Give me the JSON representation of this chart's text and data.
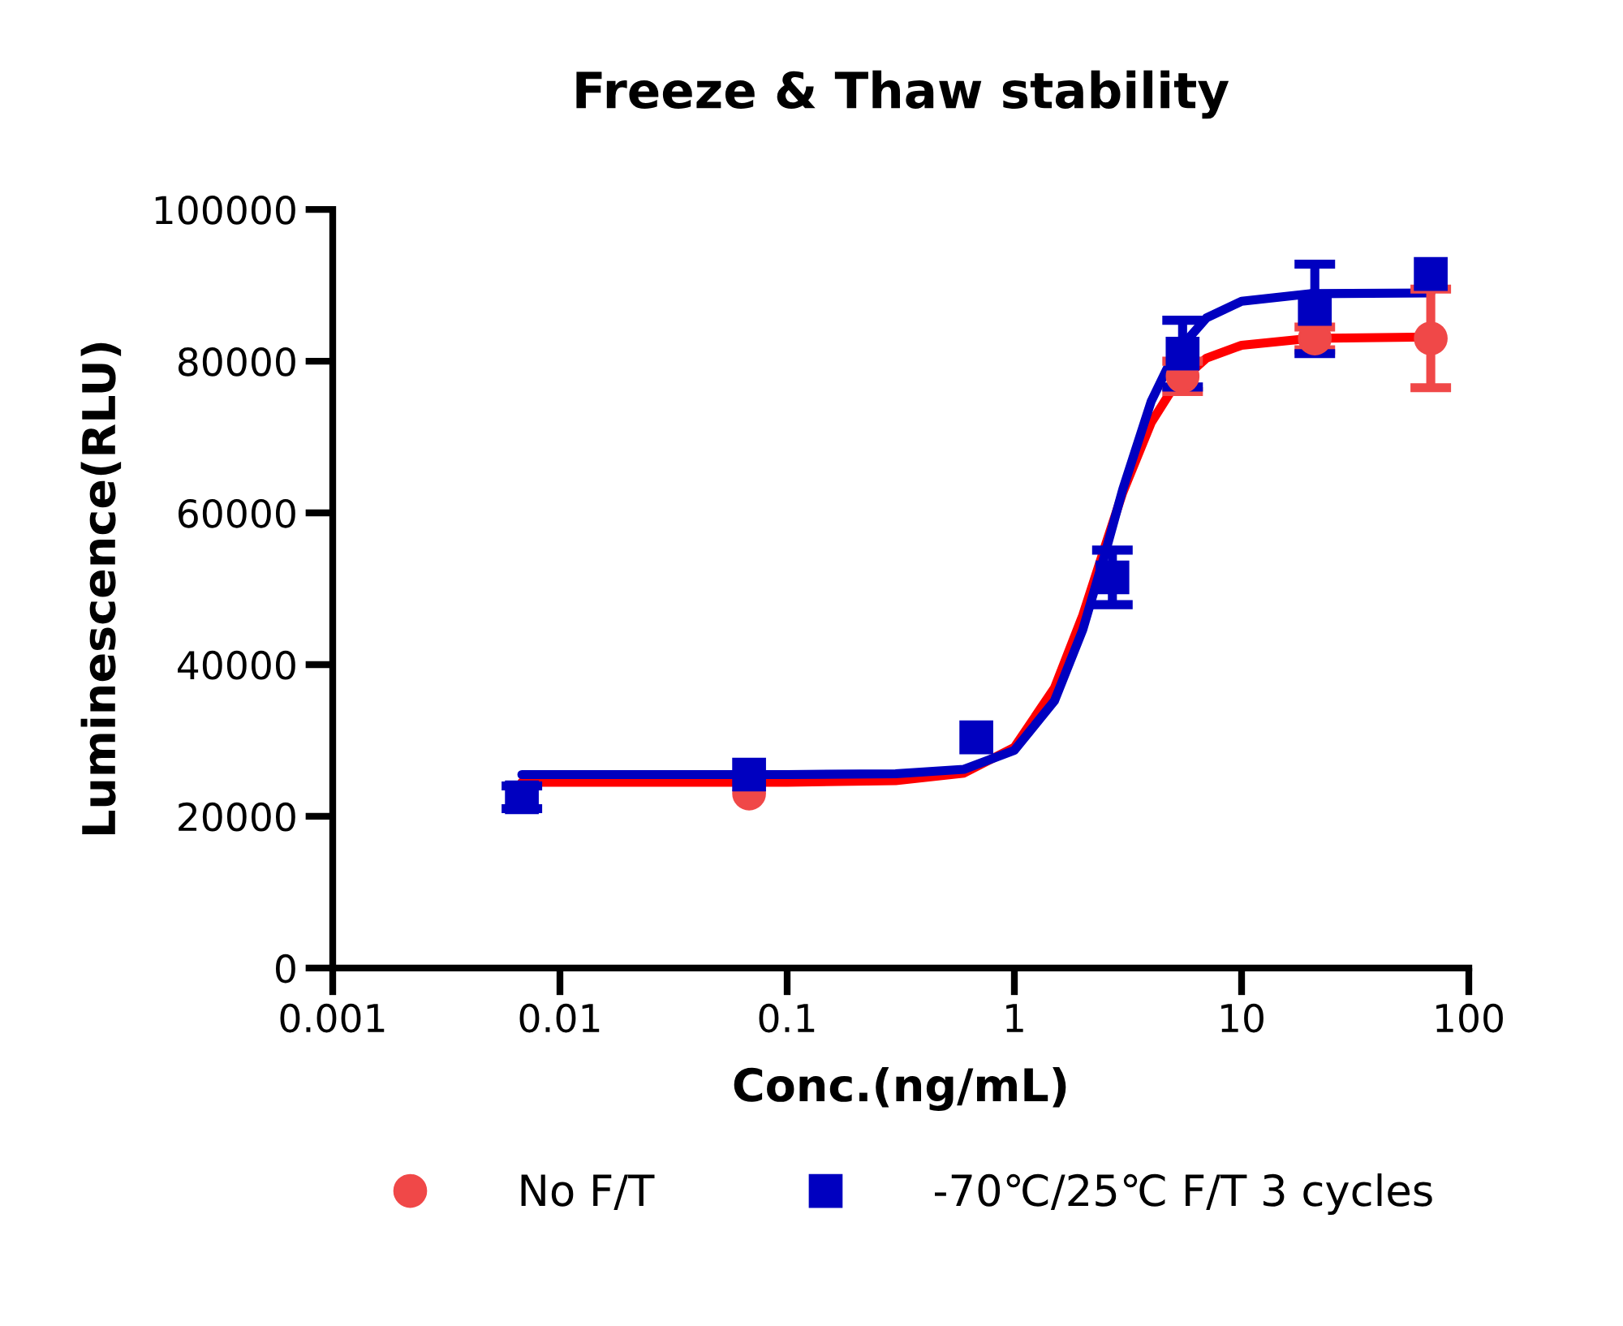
{
  "chart_data": {
    "type": "scatter",
    "title": "Freeze & Thaw stability",
    "xlabel": "Conc.(ng/mL)",
    "ylabel": "Luminescence(RLU)",
    "log": "x",
    "xlim": [
      0.001,
      100
    ],
    "xticks": [
      0.001,
      0.01,
      0.1,
      1,
      10,
      100
    ],
    "ylim": [
      0,
      100000
    ],
    "yticks": [
      0,
      20000,
      40000,
      60000,
      80000,
      100000
    ],
    "grid": false,
    "legend": "bottom",
    "series": [
      {
        "type": "line",
        "color": "#ff0000",
        "marker": "none",
        "line_style": "solid",
        "x": [
          0.0068,
          0.1,
          0.3,
          0.6,
          1,
          1.5,
          2,
          2.5,
          3,
          4,
          5,
          7,
          10,
          20,
          68
        ],
        "values": [
          24500,
          24500,
          24700,
          25700,
          29100,
          36900,
          46500,
          55500,
          62700,
          71900,
          76500,
          80400,
          82100,
          83000,
          83200
        ]
      },
      {
        "type": "line",
        "color": "#0000c0",
        "marker": "none",
        "line_style": "solid",
        "x": [
          0.0068,
          0.1,
          0.3,
          0.6,
          1,
          1.5,
          2,
          2.5,
          3,
          4,
          5,
          7,
          10,
          20,
          68
        ],
        "values": [
          25500,
          25500,
          25600,
          26200,
          28700,
          35200,
          44600,
          54500,
          63100,
          74700,
          80700,
          85700,
          87900,
          88900,
          89000
        ]
      },
      {
        "name": "No F/T",
        "color": "#f04848",
        "marker": "circle",
        "x": [
          0.068,
          0.68,
          2.7,
          5.5,
          21,
          68
        ],
        "values": [
          23000,
          null,
          null,
          78000,
          83000,
          83000
        ],
        "errors": [
          null,
          null,
          null,
          2000,
          1500,
          6500
        ]
      },
      {
        "name": "-70℃/25℃ F/T 3 cycles",
        "color": "#0000c0",
        "marker": "square",
        "x": [
          0.0068,
          0.068,
          0.68,
          2.7,
          5.5,
          21,
          68
        ],
        "values": [
          22500,
          25500,
          30400,
          51500,
          81000,
          86900,
          91500
        ],
        "errors": [
          1500,
          null,
          null,
          3600,
          4400,
          5900,
          null
        ]
      }
    ]
  }
}
